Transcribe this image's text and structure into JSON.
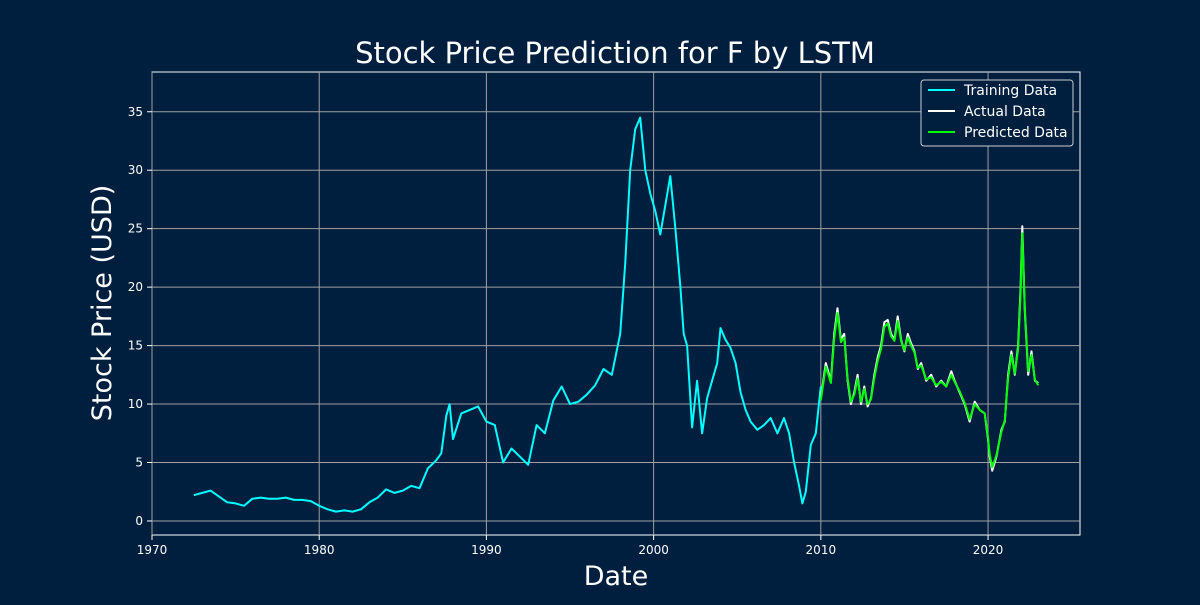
{
  "chart_data": {
    "type": "line",
    "title": "Stock Price Prediction for F by LSTM",
    "xlabel": "Date",
    "ylabel": "Stock Price (USD)",
    "xlim": [
      1970.0,
      2025.5
    ],
    "ylim": [
      -1.2,
      38.4
    ],
    "x_ticks": [
      1970,
      1980,
      1990,
      2000,
      2010,
      2020
    ],
    "y_ticks": [
      0,
      5,
      10,
      15,
      20,
      25,
      30,
      35
    ],
    "grid": true,
    "legend_position": "top-right",
    "series": [
      {
        "name": "Training Data",
        "color": "#00ffff",
        "x": [
          1972.5,
          1973,
          1973.5,
          1974,
          1974.5,
          1975,
          1975.5,
          1976,
          1976.5,
          1977,
          1977.5,
          1978,
          1978.5,
          1979,
          1979.5,
          1980,
          1980.5,
          1981,
          1981.5,
          1982,
          1982.5,
          1983,
          1983.5,
          1984,
          1984.5,
          1985,
          1985.5,
          1986,
          1986.5,
          1987,
          1987.3,
          1987.6,
          1987.8,
          1988,
          1988.5,
          1989,
          1989.5,
          1990,
          1990.5,
          1991,
          1991.5,
          1992,
          1992.5,
          1993,
          1993.5,
          1994,
          1994.5,
          1995,
          1995.5,
          1996,
          1996.5,
          1997,
          1997.5,
          1998,
          1998.3,
          1998.6,
          1998.9,
          1999.2,
          1999.5,
          1999.8,
          2000.1,
          2000.4,
          2000.7,
          2001,
          2001.3,
          2001.6,
          2001.8,
          2002,
          2002.3,
          2002.6,
          2002.9,
          2003.2,
          2003.5,
          2003.8,
          2004,
          2004.3,
          2004.6,
          2004.9,
          2005.2,
          2005.5,
          2005.8,
          2006.2,
          2006.6,
          2007,
          2007.4,
          2007.8,
          2008.1,
          2008.4,
          2008.7,
          2008.9,
          2009.1,
          2009.4,
          2009.7,
          2010
        ],
        "y": [
          2.2,
          2.4,
          2.6,
          2.1,
          1.6,
          1.5,
          1.3,
          1.9,
          2.0,
          1.9,
          1.9,
          2.0,
          1.8,
          1.8,
          1.7,
          1.3,
          1.0,
          0.8,
          0.9,
          0.8,
          1.0,
          1.6,
          2.0,
          2.7,
          2.4,
          2.6,
          3.0,
          2.8,
          4.5,
          5.2,
          5.8,
          9.0,
          10.0,
          7.0,
          9.2,
          9.5,
          9.8,
          8.5,
          8.2,
          5.0,
          6.2,
          5.5,
          4.8,
          8.2,
          7.5,
          10.3,
          11.5,
          10.0,
          10.2,
          10.8,
          11.6,
          13.0,
          12.5,
          16.0,
          22.0,
          30.0,
          33.5,
          34.5,
          30.0,
          28.0,
          26.5,
          24.5,
          27.0,
          29.5,
          25.0,
          20.0,
          16.0,
          15.0,
          8.0,
          12.0,
          7.5,
          10.5,
          12.0,
          13.5,
          16.5,
          15.5,
          14.8,
          13.5,
          11.0,
          9.5,
          8.5,
          7.8,
          8.2,
          8.8,
          7.5,
          8.8,
          7.5,
          5.0,
          3.0,
          1.5,
          2.5,
          6.5,
          7.5,
          11.5
        ]
      },
      {
        "name": "Actual Data",
        "color": "#ffffff",
        "x": [
          2010,
          2010.3,
          2010.6,
          2010.8,
          2011,
          2011.2,
          2011.4,
          2011.6,
          2011.8,
          2012,
          2012.2,
          2012.4,
          2012.6,
          2012.8,
          2013,
          2013.2,
          2013.4,
          2013.6,
          2013.8,
          2014,
          2014.2,
          2014.4,
          2014.6,
          2014.8,
          2015,
          2015.2,
          2015.4,
          2015.6,
          2015.8,
          2016,
          2016.3,
          2016.6,
          2016.9,
          2017.2,
          2017.5,
          2017.8,
          2018,
          2018.3,
          2018.6,
          2018.9,
          2019.2,
          2019.5,
          2019.8,
          2020,
          2020.1,
          2020.25,
          2020.5,
          2020.8,
          2021,
          2021.2,
          2021.4,
          2021.6,
          2021.8,
          2021.95,
          2022.05,
          2022.2,
          2022.4,
          2022.6,
          2022.8,
          2023
        ],
        "y": [
          10.5,
          13.5,
          12.0,
          16.0,
          18.2,
          15.5,
          16.0,
          12.0,
          10.0,
          11.0,
          12.5,
          10.0,
          11.5,
          9.8,
          10.5,
          12.5,
          14.0,
          15.0,
          17.0,
          17.2,
          16.0,
          15.5,
          17.5,
          15.5,
          14.5,
          16.0,
          15.2,
          14.5,
          13.0,
          13.5,
          12.0,
          12.5,
          11.5,
          12.0,
          11.5,
          12.8,
          12.0,
          11.0,
          10.0,
          8.5,
          10.2,
          9.5,
          9.2,
          7.0,
          5.5,
          4.3,
          5.5,
          7.8,
          8.5,
          12.5,
          14.5,
          12.5,
          15.0,
          20.0,
          25.2,
          18.0,
          12.5,
          14.5,
          12.0,
          11.8
        ]
      },
      {
        "name": "Predicted Data",
        "color": "#00ff00",
        "x": [
          2010,
          2010.3,
          2010.6,
          2010.8,
          2011,
          2011.2,
          2011.4,
          2011.6,
          2011.8,
          2012,
          2012.2,
          2012.4,
          2012.6,
          2012.8,
          2013,
          2013.2,
          2013.4,
          2013.6,
          2013.8,
          2014,
          2014.2,
          2014.4,
          2014.6,
          2014.8,
          2015,
          2015.2,
          2015.4,
          2015.6,
          2015.8,
          2016,
          2016.3,
          2016.6,
          2016.9,
          2017.2,
          2017.5,
          2017.8,
          2018,
          2018.3,
          2018.6,
          2018.9,
          2019.2,
          2019.5,
          2019.8,
          2020,
          2020.1,
          2020.25,
          2020.5,
          2020.8,
          2021,
          2021.2,
          2021.4,
          2021.6,
          2021.8,
          2021.95,
          2022.05,
          2022.2,
          2022.4,
          2022.6,
          2022.8,
          2023
        ],
        "y": [
          10.3,
          13.2,
          11.8,
          15.6,
          17.8,
          15.3,
          15.7,
          12.2,
          10.2,
          10.8,
          12.2,
          10.2,
          11.3,
          10.0,
          10.4,
          12.2,
          13.7,
          14.7,
          16.6,
          16.9,
          15.8,
          15.4,
          17.1,
          15.4,
          14.6,
          15.7,
          15.0,
          14.4,
          13.1,
          13.3,
          12.1,
          12.3,
          11.6,
          11.9,
          11.5,
          12.5,
          11.9,
          11.1,
          10.1,
          8.7,
          10.0,
          9.5,
          9.2,
          7.2,
          5.7,
          4.6,
          5.6,
          7.6,
          8.6,
          12.2,
          14.2,
          12.6,
          14.7,
          19.5,
          24.6,
          18.2,
          12.8,
          14.2,
          12.1,
          11.6
        ]
      }
    ]
  }
}
